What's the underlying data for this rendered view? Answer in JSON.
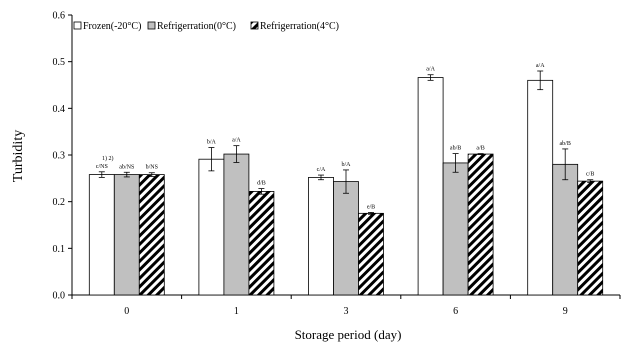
{
  "chart_data": {
    "type": "bar",
    "xlabel": "Storage period (day)",
    "ylabel": "Turbidity",
    "ylim": [
      0,
      0.6
    ],
    "yticks": [
      "0.0",
      "0.1",
      "0.2",
      "0.3",
      "0.4",
      "0.5",
      "0.6"
    ],
    "categories": [
      "0",
      "1",
      "3",
      "6",
      "9"
    ],
    "legend_position": "top-left",
    "footnote_markers": "1)  2)",
    "series": [
      {
        "name": "Frozen(-20°C)",
        "pattern": "white",
        "values": [
          0.258,
          0.291,
          0.252,
          0.466,
          0.46
        ],
        "errors": [
          0.006,
          0.025,
          0.005,
          0.006,
          0.02
        ],
        "labels": [
          "c/NS",
          "b/A",
          "c/A",
          "a/A",
          "a/A"
        ]
      },
      {
        "name": "Refrigerration(0°C)",
        "pattern": "gray",
        "values": [
          0.258,
          0.302,
          0.243,
          0.283,
          0.28
        ],
        "errors": [
          0.005,
          0.018,
          0.025,
          0.02,
          0.033
        ],
        "labels": [
          "ab/NS",
          "a/A",
          "b/A",
          "ab/B",
          "ab/B"
        ]
      },
      {
        "name": "Refrigerration(4°C)",
        "pattern": "hatch",
        "values": [
          0.258,
          0.222,
          0.175,
          0.302,
          0.244
        ],
        "errors": [
          0.004,
          0.006,
          0.002,
          0.001,
          0.003
        ],
        "labels": [
          "b/NS",
          "d/B",
          "e/B",
          "a/B",
          "c/B"
        ]
      }
    ]
  }
}
